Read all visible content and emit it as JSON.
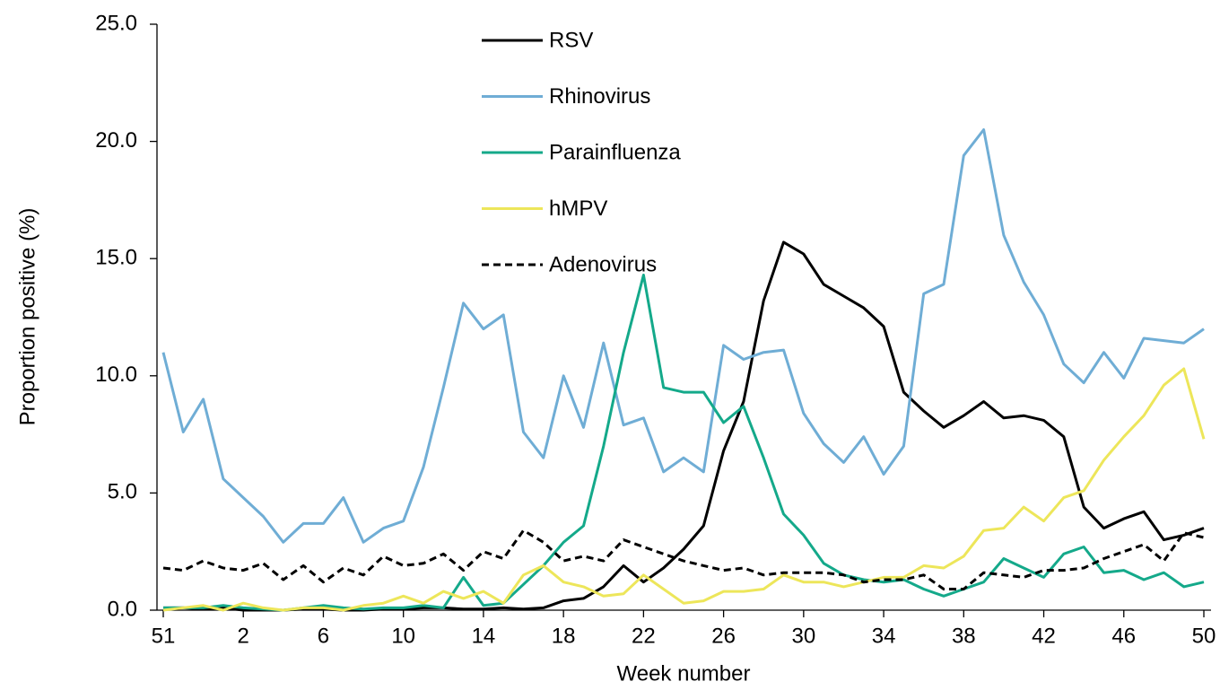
{
  "chart_data": {
    "type": "line",
    "y_label": "Proportion positive (%)",
    "x_label": "Week number",
    "categories": [
      "51",
      null,
      null,
      null,
      "2",
      null,
      null,
      null,
      "6",
      null,
      null,
      null,
      "10",
      null,
      null,
      null,
      "14",
      null,
      null,
      null,
      "18",
      null,
      null,
      null,
      "22",
      null,
      null,
      null,
      "26",
      null,
      null,
      null,
      "30",
      null,
      null,
      null,
      "34",
      null,
      null,
      null,
      "38",
      null,
      null,
      null,
      "42",
      null,
      null,
      null,
      "46",
      null,
      null,
      null,
      "50"
    ],
    "ylim": [
      0,
      25
    ],
    "yticks": [
      {
        "value": 0,
        "label": "0.0"
      },
      {
        "value": 5,
        "label": "5.0"
      },
      {
        "value": 10,
        "label": "10.0"
      },
      {
        "value": 15,
        "label": "15.0"
      },
      {
        "value": 20,
        "label": "20.0"
      },
      {
        "value": 25,
        "label": "25.0"
      }
    ],
    "legend": "top",
    "series": [
      {
        "name": "RSV",
        "color": "#000000",
        "line_style": "solid",
        "values": [
          0.1,
          0.1,
          0.05,
          0.1,
          0,
          0,
          0,
          0.05,
          0.05,
          0,
          0,
          0.05,
          0.05,
          0.1,
          0.1,
          0.05,
          0.05,
          0.1,
          0.05,
          0.1,
          0.4,
          0.5,
          1.0,
          1.9,
          1.2,
          1.8,
          2.6,
          3.6,
          6.8,
          8.9,
          13.2,
          15.7,
          15.2,
          13.9,
          13.4,
          12.9,
          12.1,
          9.3,
          8.5,
          7.8,
          8.3,
          8.9,
          8.2,
          8.3,
          8.1,
          7.4,
          4.4,
          3.5,
          3.9,
          4.2,
          3.0,
          3.2,
          3.5
        ]
      },
      {
        "name": "Rhinovirus",
        "color": "#6fadd5",
        "line_style": "solid",
        "values": [
          11.0,
          7.6,
          9.0,
          5.6,
          4.8,
          4.0,
          2.9,
          3.7,
          3.7,
          4.8,
          2.9,
          3.5,
          3.8,
          6.1,
          9.5,
          13.1,
          12.0,
          12.6,
          7.6,
          6.5,
          10.0,
          7.8,
          11.4,
          7.9,
          8.2,
          5.9,
          6.5,
          5.9,
          11.3,
          10.7,
          11.0,
          11.1,
          8.4,
          7.1,
          6.3,
          7.4,
          5.8,
          7.0,
          13.5,
          13.9,
          19.4,
          20.5,
          16.0,
          14.0,
          12.6,
          10.5,
          9.7,
          11.0,
          9.9,
          11.6,
          11.5,
          11.4,
          12.0
        ]
      },
      {
        "name": "Parainfluenza",
        "color": "#14a98a",
        "line_style": "solid",
        "values": [
          0.1,
          0.1,
          0.1,
          0.2,
          0.1,
          0.05,
          0,
          0.1,
          0.2,
          0.1,
          0.05,
          0.1,
          0.1,
          0.2,
          0.1,
          1.4,
          0.2,
          0.3,
          1.1,
          1.9,
          2.9,
          3.6,
          7.0,
          11.0,
          14.3,
          9.5,
          9.3,
          9.3,
          8.0,
          8.7,
          6.5,
          4.1,
          3.2,
          2.0,
          1.5,
          1.3,
          1.2,
          1.3,
          0.9,
          0.6,
          0.9,
          1.2,
          2.2,
          1.8,
          1.4,
          2.4,
          2.7,
          1.6,
          1.7,
          1.3,
          1.6,
          1.0,
          1.2
        ]
      },
      {
        "name": "hMPV",
        "color": "#ede65a",
        "line_style": "solid",
        "values": [
          0,
          0.1,
          0.2,
          0,
          0.3,
          0.1,
          0,
          0.1,
          0.1,
          0,
          0.2,
          0.3,
          0.6,
          0.3,
          0.8,
          0.5,
          0.8,
          0.3,
          1.5,
          1.9,
          1.2,
          1.0,
          0.6,
          0.7,
          1.5,
          0.9,
          0.3,
          0.4,
          0.8,
          0.8,
          0.9,
          1.5,
          1.2,
          1.2,
          1.0,
          1.2,
          1.4,
          1.4,
          1.9,
          1.8,
          2.3,
          3.4,
          3.5,
          4.4,
          3.8,
          4.8,
          5.1,
          6.4,
          7.4,
          8.3,
          9.6,
          10.3,
          7.3
        ]
      },
      {
        "name": "Adenovirus",
        "color": "#000000",
        "line_style": "dashed",
        "values": [
          1.8,
          1.7,
          2.1,
          1.8,
          1.7,
          2.0,
          1.3,
          1.9,
          1.2,
          1.8,
          1.5,
          2.3,
          1.9,
          2.0,
          2.4,
          1.7,
          2.5,
          2.2,
          3.4,
          2.9,
          2.1,
          2.3,
          2.1,
          3.0,
          2.7,
          2.4,
          2.1,
          1.9,
          1.7,
          1.8,
          1.5,
          1.6,
          1.6,
          1.6,
          1.5,
          1.2,
          1.3,
          1.3,
          1.5,
          0.9,
          0.9,
          1.6,
          1.5,
          1.4,
          1.7,
          1.7,
          1.8,
          2.2,
          2.5,
          2.8,
          2.1,
          3.3,
          3.1
        ]
      }
    ]
  }
}
